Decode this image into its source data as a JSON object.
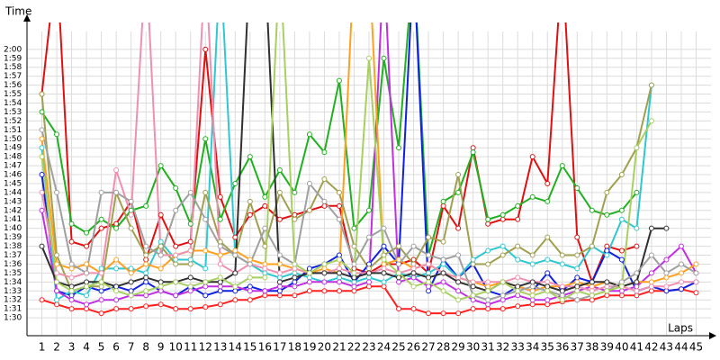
{
  "chart_data": {
    "type": "line",
    "y_label": "Time",
    "x_label": "Laps",
    "x": [
      1,
      2,
      3,
      4,
      5,
      6,
      7,
      8,
      9,
      10,
      11,
      12,
      13,
      14,
      15,
      16,
      17,
      18,
      19,
      20,
      21,
      22,
      23,
      24,
      25,
      26,
      27,
      28,
      29,
      30,
      31,
      32,
      33,
      34,
      35,
      36,
      37,
      38,
      39,
      40,
      41,
      42,
      43,
      44,
      45
    ],
    "xticks": [
      1,
      2,
      3,
      4,
      5,
      6,
      7,
      8,
      9,
      10,
      11,
      12,
      13,
      14,
      15,
      16,
      17,
      18,
      19,
      20,
      21,
      22,
      23,
      24,
      25,
      26,
      27,
      28,
      29,
      30,
      31,
      32,
      33,
      34,
      35,
      36,
      37,
      38,
      39,
      40,
      41,
      42,
      43,
      44,
      45
    ],
    "xlim": [
      0,
      46
    ],
    "ylim": [
      88,
      123
    ],
    "yticks": [
      {
        "value": 90,
        "label": "1:30"
      },
      {
        "value": 91,
        "label": "1:31"
      },
      {
        "value": 92,
        "label": "1:32"
      },
      {
        "value": 93,
        "label": "1:33"
      },
      {
        "value": 94,
        "label": "1:34"
      },
      {
        "value": 95,
        "label": "1:35"
      },
      {
        "value": 96,
        "label": "1:36"
      },
      {
        "value": 97,
        "label": "1:37"
      },
      {
        "value": 98,
        "label": "1:38"
      },
      {
        "value": 99,
        "label": "1:39"
      },
      {
        "value": 100,
        "label": "1:40"
      },
      {
        "value": 101,
        "label": "1:41"
      },
      {
        "value": 102,
        "label": "1:42"
      },
      {
        "value": 103,
        "label": "1:43"
      },
      {
        "value": 104,
        "label": "1:44"
      },
      {
        "value": 105,
        "label": "1:45"
      },
      {
        "value": 106,
        "label": "1:46"
      },
      {
        "value": 107,
        "label": "1:47"
      },
      {
        "value": 108,
        "label": "1:48"
      },
      {
        "value": 109,
        "label": "1:49"
      },
      {
        "value": 110,
        "label": "1:50"
      },
      {
        "value": 111,
        "label": "1:51"
      },
      {
        "value": 112,
        "label": "1:52"
      },
      {
        "value": 113,
        "label": "1:53"
      },
      {
        "value": 114,
        "label": "1:54"
      },
      {
        "value": 115,
        "label": "1:55"
      },
      {
        "value": 116,
        "label": "1:56"
      },
      {
        "value": 117,
        "label": "1:57"
      },
      {
        "value": 118,
        "label": "1:58"
      },
      {
        "value": 119,
        "label": "1:59"
      },
      {
        "value": 120,
        "label": "2:00"
      }
    ],
    "grid": true,
    "series": [
      {
        "color": "#ff2020",
        "values": [
          92,
          91.5,
          91,
          91,
          90.5,
          91,
          91,
          91.3,
          91.5,
          91,
          91,
          91.2,
          91.5,
          92,
          92,
          92.5,
          92.5,
          92.5,
          93,
          93,
          93,
          93,
          93.5,
          93.5,
          91,
          91,
          90.5,
          90.5,
          90.5,
          91,
          91,
          91,
          91.3,
          91.5,
          91.5,
          91.8,
          92,
          92,
          92.5,
          92.5,
          92.5,
          93,
          93,
          93.2,
          92.8
        ]
      },
      {
        "color": "#e01010",
        "values": [
          115,
          130,
          98.5,
          98,
          100,
          100.5,
          103,
          96.5,
          101.5,
          98,
          98.5,
          120,
          103.5,
          99,
          101.5,
          102.5,
          101,
          101.5,
          102,
          102.5,
          102.5,
          95.5,
          95,
          96,
          96,
          96.5,
          95,
          102.5,
          100,
          109,
          100.5,
          101,
          101,
          108,
          105,
          130,
          99,
          94,
          98,
          97.5,
          98,
          null,
          null,
          null,
          null
        ]
      },
      {
        "color": "#20b020",
        "values": [
          113,
          110.5,
          100.5,
          99.5,
          101,
          100,
          102,
          102.5,
          107,
          104.5,
          100.5,
          110,
          101,
          105,
          108,
          103.5,
          106.5,
          104,
          110.5,
          108.5,
          116.5,
          100,
          102,
          119,
          109,
          130,
          97,
          103,
          104,
          108.5,
          101,
          101.5,
          102.5,
          103.5,
          103,
          107,
          104.5,
          102,
          101.5,
          102,
          104,
          null,
          null,
          null,
          null
        ]
      },
      {
        "color": "#1020e0",
        "values": [
          106,
          93,
          92.5,
          93.5,
          93,
          93.5,
          93,
          94,
          93,
          92.5,
          93.5,
          92.5,
          93,
          93,
          93.5,
          93,
          93,
          94,
          95.5,
          96,
          97,
          94,
          96,
          98,
          96,
          130,
          93,
          96.5,
          94.5,
          96,
          93,
          92.5,
          93.5,
          93,
          95,
          93,
          94.5,
          94,
          97.5,
          96.5,
          93,
          93.5,
          93,
          93.2,
          94
        ]
      },
      {
        "color": "#30c8d0",
        "values": [
          109,
          92,
          93,
          92.5,
          95.5,
          95.5,
          95.5,
          95,
          98.5,
          96.5,
          96.5,
          95.5,
          130,
          97,
          96,
          95,
          94.5,
          95,
          94.5,
          94,
          94.5,
          94,
          94.5,
          94,
          95,
          94.5,
          95,
          96,
          94.5,
          96.5,
          97.5,
          98,
          96.5,
          96,
          96.5,
          96,
          95.5,
          98,
          97,
          101,
          100,
          116,
          null,
          null,
          null
        ]
      },
      {
        "color": "#c030e0",
        "values": [
          102,
          93,
          92,
          91.5,
          92,
          92,
          92.5,
          92.5,
          93,
          92.5,
          93,
          93.5,
          93.5,
          93.5,
          93,
          93,
          93.5,
          93.5,
          94,
          94,
          94,
          93.5,
          94,
          130,
          94,
          94.5,
          93.5,
          94,
          93,
          92,
          91.5,
          92,
          92.5,
          92,
          92,
          92.5,
          93,
          93.5,
          93,
          93,
          93.5,
          95,
          96.5,
          98,
          95
        ]
      },
      {
        "color": "#ffa020",
        "values": [
          110,
          96,
          95.5,
          96,
          95,
          96.5,
          95,
          96,
          95.5,
          97,
          97.5,
          97.5,
          97,
          97.5,
          96.5,
          96,
          96,
          95.5,
          95,
          95.5,
          95,
          130,
          130,
          96,
          96.5,
          95.5,
          96,
          95,
          94.5,
          94,
          93.5,
          94,
          93.5,
          93,
          93.5,
          93.5,
          94,
          93.5,
          94,
          93.5,
          94,
          94,
          94.5,
          95,
          96
        ]
      },
      {
        "color": "#a0a050",
        "values": [
          115,
          97,
          93,
          93.5,
          93.5,
          104,
          100,
          97,
          98,
          96,
          96,
          104,
          98.5,
          97,
          103,
          98,
          104,
          101,
          102,
          105.5,
          104,
          98,
          95.5,
          97,
          98,
          96,
          99,
          98.5,
          106,
          96,
          96,
          97,
          98,
          97,
          99,
          97,
          97,
          98,
          104,
          106,
          109,
          116,
          null,
          null,
          null
        ]
      },
      {
        "color": "#f090b0",
        "values": [
          104,
          95,
          94.5,
          95,
          95,
          106.5,
          101.5,
          130,
          97,
          97,
          97.5,
          130,
          96,
          95,
          96,
          95.5,
          95,
          95.5,
          95,
          95,
          95.5,
          95,
          95,
          95.5,
          95,
          95.5,
          96,
          95,
          94.5,
          94,
          94,
          94,
          94.5,
          94,
          94,
          93.5,
          93.5,
          93,
          93.5,
          93.5,
          93,
          93.5,
          93.5,
          94,
          94
        ]
      },
      {
        "color": "#303030",
        "values": [
          98,
          94,
          93.5,
          94,
          94,
          93.5,
          94,
          94.5,
          94,
          94,
          94.5,
          94,
          94,
          95,
          130,
          130,
          94,
          94.5,
          95,
          95,
          95,
          94.5,
          95,
          95,
          94.5,
          95,
          94.5,
          95,
          94,
          93.5,
          93,
          94,
          93.5,
          94,
          93.5,
          93,
          93.5,
          94,
          94,
          93.5,
          94,
          100,
          100,
          null,
          null
        ]
      },
      {
        "color": "#a0a0a0",
        "values": [
          111,
          104,
          96,
          95,
          104,
          104,
          103,
          98,
          97,
          102,
          104,
          101,
          98,
          97,
          96,
          100,
          97,
          96,
          105,
          103,
          101,
          96,
          99,
          100,
          96,
          98,
          97,
          96.5,
          97,
          92.5,
          92,
          92.5,
          93,
          93.5,
          93,
          92.5,
          92,
          92.5,
          93,
          94,
          95,
          97,
          95,
          96,
          95
        ]
      },
      {
        "color": "#a8d060",
        "values": [
          108,
          94,
          93,
          93.5,
          94,
          93,
          92.5,
          93,
          93.5,
          94,
          93.5,
          94,
          94.5,
          93.5,
          94.5,
          94.5,
          130,
          96,
          95,
          96,
          96.5,
          95,
          119,
          96.5,
          95,
          93.5,
          94,
          93,
          92,
          92.5,
          93,
          94,
          93,
          92.5,
          93,
          92,
          93,
          92.5,
          93,
          93.5,
          109,
          112,
          null,
          null,
          null
        ]
      }
    ]
  }
}
